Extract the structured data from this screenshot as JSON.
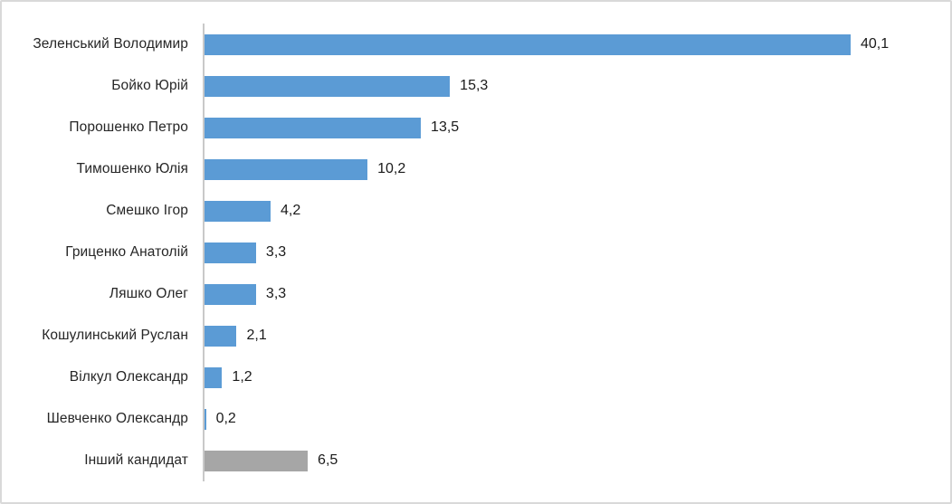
{
  "chart_data": {
    "type": "bar",
    "orientation": "horizontal",
    "title": "",
    "xlabel": "",
    "ylabel": "",
    "xlim": [
      0,
      45
    ],
    "grid": false,
    "legend": false,
    "decimal_separator": ",",
    "categories": [
      "Зеленський Володимир",
      "Бойко Юрій",
      "Порошенко Петро",
      "Тимошенко Юлія",
      "Смешко Ігор",
      "Гриценко Анатолій",
      "Ляшко Олег",
      "Кошулинський Руслан",
      "Вілкул Олександр",
      "Шевченко Олександр",
      "Інший кандидат"
    ],
    "values": [
      40.1,
      15.3,
      13.5,
      10.2,
      4.2,
      3.3,
      3.3,
      2.1,
      1.2,
      0.2,
      6.5
    ],
    "value_labels": [
      "40,1",
      "15,3",
      "13,5",
      "10,2",
      "4,2",
      "3,3",
      "3,3",
      "2,1",
      "1,2",
      "0,2",
      "6,5"
    ],
    "bar_colors": [
      "#5b9bd5",
      "#5b9bd5",
      "#5b9bd5",
      "#5b9bd5",
      "#5b9bd5",
      "#5b9bd5",
      "#5b9bd5",
      "#5b9bd5",
      "#5b9bd5",
      "#5b9bd5",
      "#a6a6a6"
    ],
    "colors": {
      "primary_bar": "#5b9bd5",
      "other_bar": "#a6a6a6",
      "axis_line": "#c9c9c9",
      "frame_border": "#d9d9d9",
      "text": "#262626",
      "background": "#ffffff"
    }
  }
}
